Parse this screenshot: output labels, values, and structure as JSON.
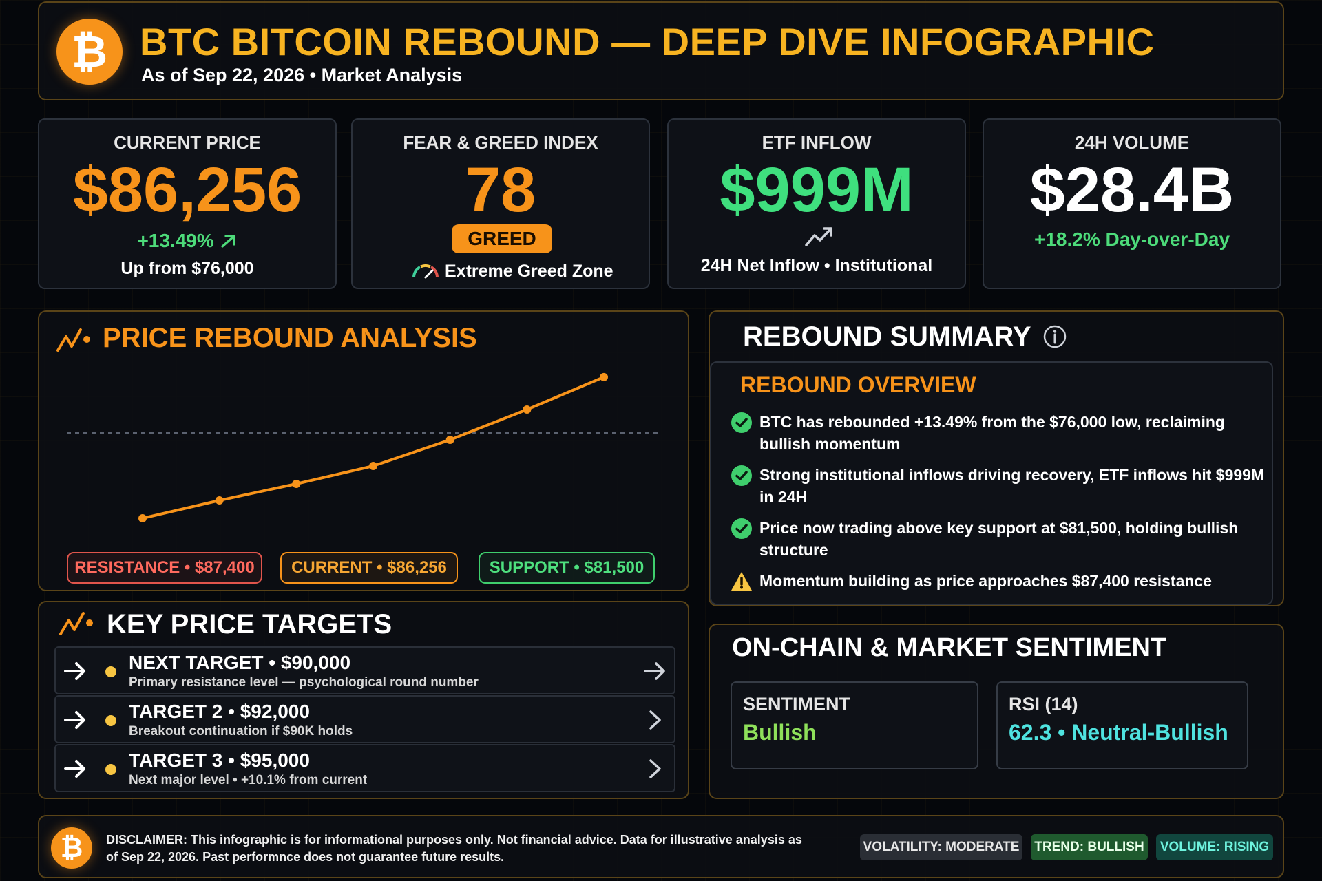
{
  "header": {
    "logo_glyph": "₿",
    "title": "BTC BITCOIN REBOUND — DEEP DIVE INFOGRAPHIC",
    "subtitle": "As of Sep 22, 2026 • Market Analysis"
  },
  "stats": {
    "price": {
      "label": "CURRENT PRICE",
      "value": "$86,256",
      "change": "+13.49%",
      "change_icon": "arrow-up-right-icon",
      "note": "Up from $76,000",
      "value_color": "#f7931a"
    },
    "fear_greed": {
      "label": "FEAR & GREED INDEX",
      "value": "78",
      "badge": "GREED",
      "zone": "Extreme Greed Zone",
      "value_color": "#f7931a"
    },
    "etf": {
      "label": "ETF INFLOW",
      "value": "$999M",
      "note": "24H Net Inflow • Institutional",
      "value_color": "#3fdf7e"
    },
    "volume": {
      "label": "24H VOLUME",
      "value": "$28.4B",
      "change": "+18.2% Day-over-Day",
      "value_color": "#ffffff"
    }
  },
  "rebound_analysis": {
    "title": "PRICE REBOUND ANALYSIS",
    "tags": {
      "resistance": "RESISTANCE • $87,400",
      "current": "CURRENT • $86,256",
      "support": "SUPPORT • $81,500"
    }
  },
  "chart_data": {
    "type": "line",
    "title": "",
    "xlabel": "",
    "ylabel": "",
    "x": [
      1,
      2,
      3,
      4,
      5,
      6,
      7
    ],
    "series": [
      {
        "values": [
          76000,
          77300,
          78500,
          79800,
          81700,
          83900,
          86256
        ]
      }
    ],
    "reference_line": 82200,
    "ylim": [
      74500,
      88000
    ],
    "grid": false,
    "line_color": "#f7931a"
  },
  "targets": {
    "title": "KEY PRICE TARGETS",
    "items": [
      {
        "name": "NEXT TARGET • $90,000",
        "desc": "Primary resistance level — psychological round number"
      },
      {
        "name": "TARGET 2 • $92,000",
        "desc": "Breakout continuation if $90K holds"
      },
      {
        "name": "TARGET 3 • $95,000",
        "desc": "Next major level • +10.1% from current"
      }
    ]
  },
  "summary": {
    "title": "REBOUND SUMMARY",
    "overview_title": "REBOUND OVERVIEW",
    "bullets": [
      {
        "icon": "check-circle-icon",
        "text": "BTC has rebounded +13.49% from the $76,000 low, reclaiming bullish momentum"
      },
      {
        "icon": "check-circle-icon",
        "text": "Strong institutional inflows driving recovery, ETF inflows hit $999M in 24H"
      },
      {
        "icon": "check-circle-icon",
        "text": "Price now trading above key support at $81,500, holding bullish structure"
      },
      {
        "icon": "warning-icon",
        "text": "Momentum building as price approaches $87,400 resistance"
      }
    ]
  },
  "sentiment": {
    "title": "ON-CHAIN & MARKET SENTIMENT",
    "sentiment_label": "SENTIMENT",
    "sentiment_value": "Bullish",
    "rsi_label": "RSI (14)",
    "rsi_value": "62.3 • Neutral-Bullish"
  },
  "footer": {
    "disclaimer": "DISCLAIMER: This infographic is for informational purposes only. Not financial advice. Data for illustrative analysis as of Sep 22, 2026. Past performnce does not guarantee future results.",
    "pills": {
      "volatility": "VOLATILITY: MODERATE",
      "trend": "TREND: BULLISH",
      "volume": "VOLUME: RISING"
    }
  }
}
